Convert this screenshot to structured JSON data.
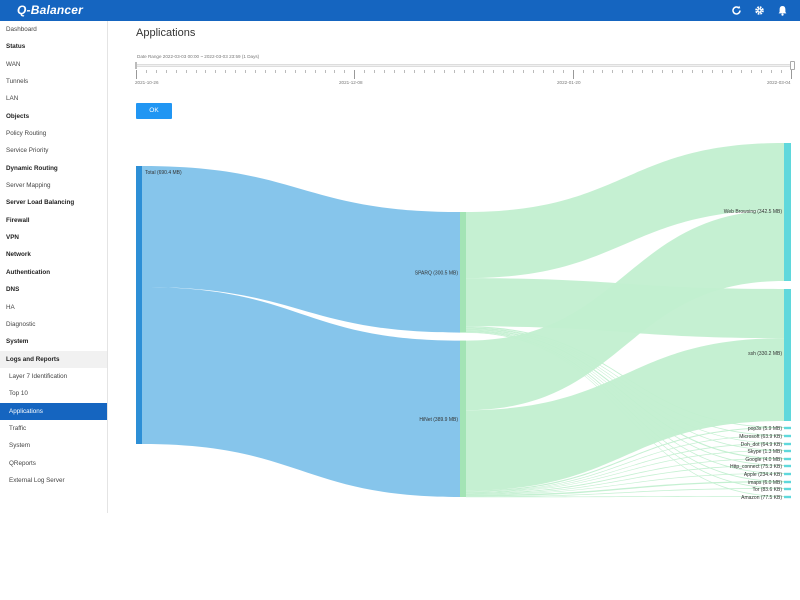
{
  "app": {
    "logo": "Q-Balancer",
    "icons": [
      "refresh-icon",
      "gear-icon",
      "bell-icon"
    ]
  },
  "sidebar": {
    "items": [
      {
        "label": "Dashboard",
        "kind": "item"
      },
      {
        "label": "Status",
        "kind": "group"
      },
      {
        "label": "WAN",
        "kind": "item"
      },
      {
        "label": "Tunnels",
        "kind": "item"
      },
      {
        "label": "LAN",
        "kind": "item"
      },
      {
        "label": "Objects",
        "kind": "group"
      },
      {
        "label": "Policy Routing",
        "kind": "item"
      },
      {
        "label": "Service Priority",
        "kind": "item"
      },
      {
        "label": "Dynamic Routing",
        "kind": "group"
      },
      {
        "label": "Server Mapping",
        "kind": "item"
      },
      {
        "label": "Server Load Balancing",
        "kind": "group"
      },
      {
        "label": "Firewall",
        "kind": "group"
      },
      {
        "label": "VPN",
        "kind": "group"
      },
      {
        "label": "Network",
        "kind": "group"
      },
      {
        "label": "Authentication",
        "kind": "group"
      },
      {
        "label": "DNS",
        "kind": "group"
      },
      {
        "label": "HA",
        "kind": "item"
      },
      {
        "label": "Diagnostic",
        "kind": "item"
      },
      {
        "label": "System",
        "kind": "group"
      },
      {
        "label": "Logs and Reports",
        "kind": "group-expanded"
      },
      {
        "label": "Layer 7 Identification",
        "kind": "sub"
      },
      {
        "label": "Top 10",
        "kind": "sub"
      },
      {
        "label": "Applications",
        "kind": "sub-active"
      },
      {
        "label": "Traffic",
        "kind": "sub"
      },
      {
        "label": "System",
        "kind": "sub"
      },
      {
        "label": "QReports",
        "kind": "sub"
      },
      {
        "label": "External Log Server",
        "kind": "sub"
      }
    ]
  },
  "main": {
    "title": "Applications",
    "date_range": "Date Range 2022-03-03 00:00 ~ 2022-03-03 23:59 (1 Days)",
    "timeline_labels": [
      "2021-10-26",
      "2021-12-08",
      "2022-01-20",
      "2022-03-04"
    ],
    "ok_label": "OK"
  },
  "colors": {
    "header": "#1565c0",
    "source_node": "#2d8fd6",
    "source_link": "#7fc2ea",
    "mid_node": "#a3e4b5",
    "target_link": "#c2efd0",
    "target_node": "#5fd8dc",
    "active": "#1565c0",
    "ok_button": "#2196f3"
  },
  "sankey": {
    "source": {
      "label": "Total (690.4 MB)",
      "value_mb": 690.4
    },
    "middle": [
      {
        "label": "SPARQ (300.5 MB)",
        "value_mb": 300.5
      },
      {
        "label": "HiNet (389.9 MB)",
        "value_mb": 389.9
      }
    ],
    "targets": [
      {
        "label": "Web Browsing (342.5 MB)",
        "value_mb": 342.5
      },
      {
        "label": "ssh (330.2 MB)",
        "value_mb": 330.2
      },
      {
        "label": "pop3s (5.9 MB)",
        "value_mb": 5.9
      },
      {
        "label": "Microsoft (63.9 KB)",
        "value_mb": 0.0639
      },
      {
        "label": "Doh_dot (64.9 KB)",
        "value_mb": 0.0649
      },
      {
        "label": "Skype (1.3 MB)",
        "value_mb": 1.3
      },
      {
        "label": "Google (4.0 MB)",
        "value_mb": 4.0
      },
      {
        "label": "Http_connect (75.3 KB)",
        "value_mb": 0.0753
      },
      {
        "label": "Apple (234.4 KB)",
        "value_mb": 0.2344
      },
      {
        "label": "imaps (6.0 MB)",
        "value_mb": 6.0
      },
      {
        "label": "Tor (83.6 KB)",
        "value_mb": 0.0836
      },
      {
        "label": "Amazon (77.5 KB)",
        "value_mb": 0.0775
      }
    ]
  }
}
